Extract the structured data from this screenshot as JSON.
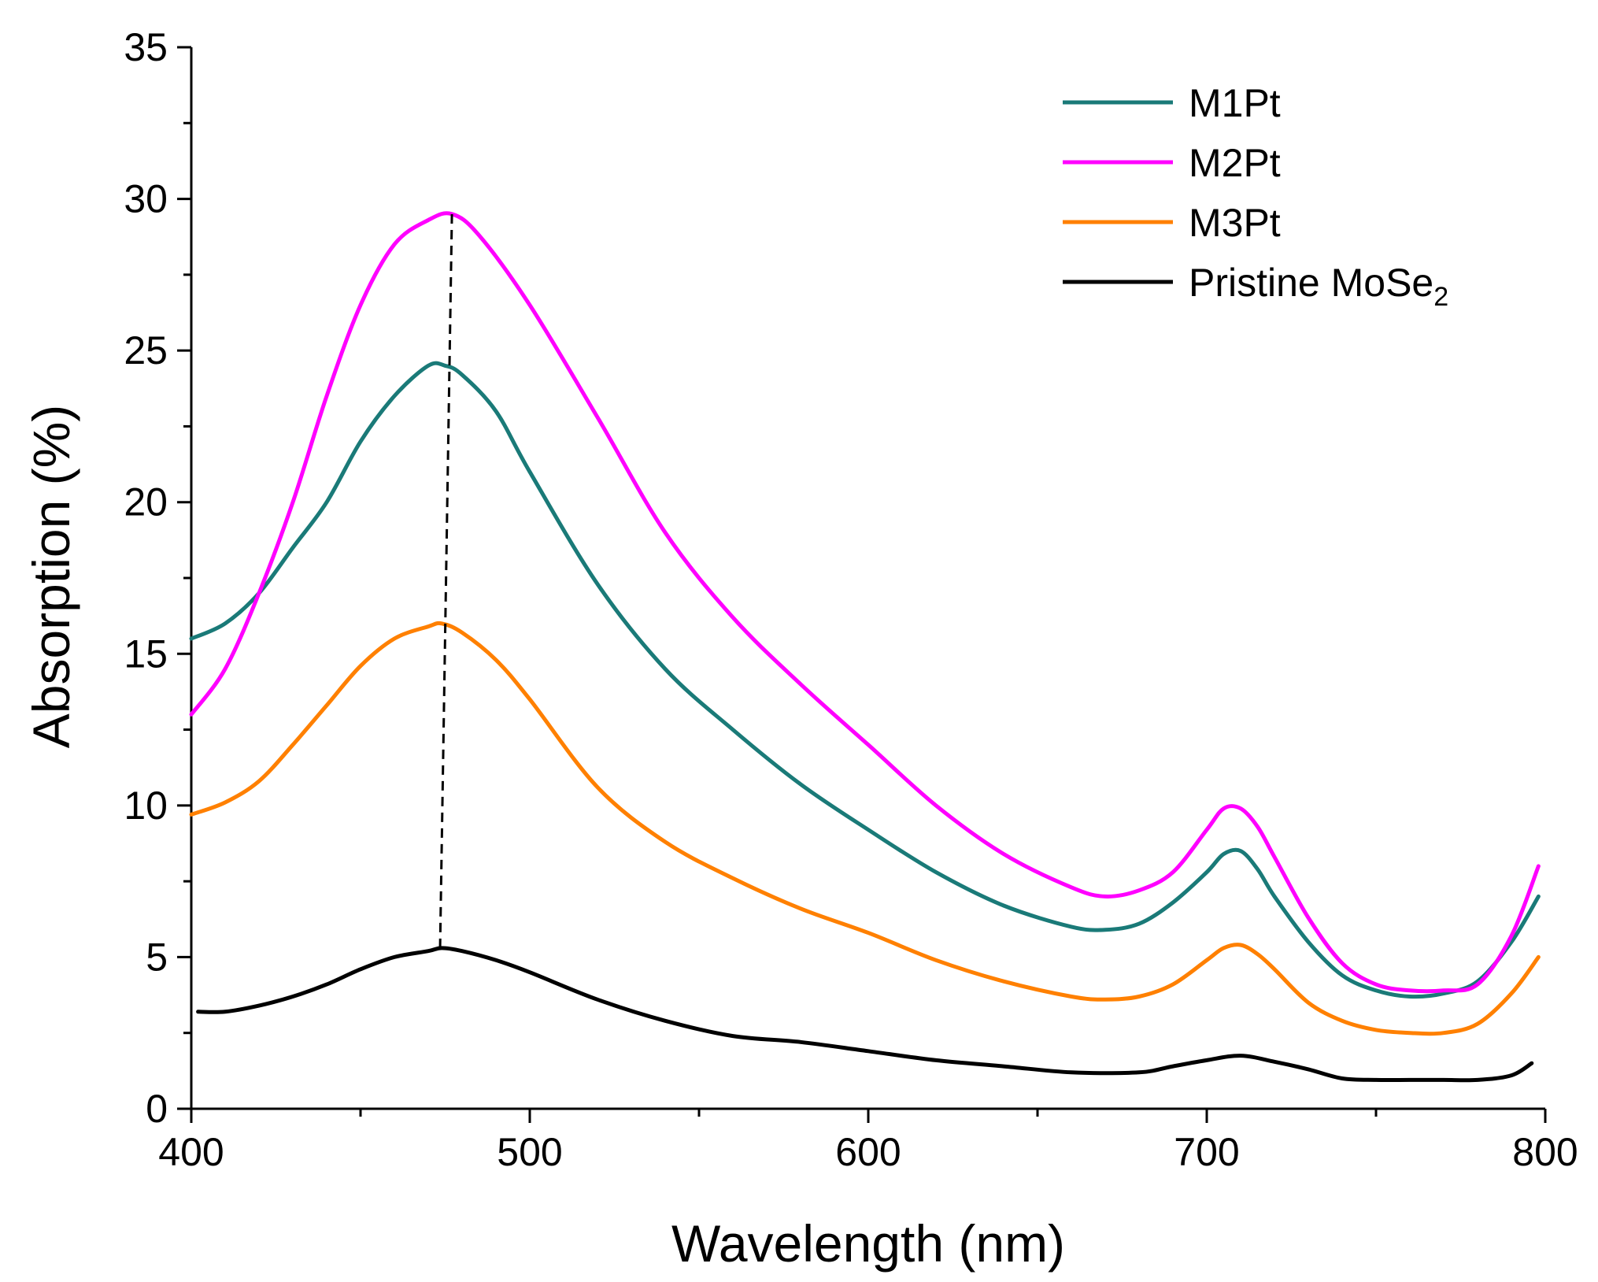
{
  "chart_data": {
    "type": "line",
    "title": "",
    "xlabel": "Wavelength (nm)",
    "ylabel": "Absorption (%)",
    "xlim": [
      400,
      800
    ],
    "ylim": [
      0,
      35
    ],
    "xticks": [
      400,
      500,
      600,
      700,
      800
    ],
    "yticks": [
      0,
      5,
      10,
      15,
      20,
      25,
      30,
      35
    ],
    "legend_position": "top-right",
    "series": [
      {
        "name": "M1Pt",
        "label": "M1Pt",
        "color": "#1a7a78",
        "x": [
          400,
          410,
          420,
          430,
          440,
          450,
          460,
          470,
          475,
          480,
          490,
          500,
          520,
          540,
          560,
          580,
          600,
          620,
          640,
          660,
          670,
          680,
          690,
          700,
          705,
          710,
          715,
          720,
          730,
          740,
          750,
          760,
          770,
          780,
          790,
          798
        ],
        "y": [
          15.5,
          16.0,
          17.0,
          18.5,
          20.0,
          22.0,
          23.5,
          24.5,
          24.5,
          24.2,
          23.0,
          21.0,
          17.3,
          14.5,
          12.5,
          10.7,
          9.2,
          7.8,
          6.7,
          6.0,
          5.9,
          6.1,
          6.8,
          7.8,
          8.4,
          8.5,
          7.9,
          7.0,
          5.5,
          4.4,
          3.9,
          3.7,
          3.8,
          4.2,
          5.5,
          7.0
        ]
      },
      {
        "name": "M2Pt",
        "label": "M2Pt",
        "color": "#ff00ff",
        "x": [
          400,
          410,
          420,
          430,
          440,
          450,
          460,
          470,
          477,
          485,
          500,
          520,
          540,
          560,
          580,
          600,
          620,
          640,
          660,
          670,
          680,
          690,
          700,
          705,
          710,
          715,
          720,
          730,
          740,
          750,
          760,
          770,
          780,
          790,
          798
        ],
        "y": [
          13.0,
          14.5,
          17.0,
          20.0,
          23.5,
          26.5,
          28.5,
          29.3,
          29.5,
          28.8,
          26.5,
          22.8,
          19.0,
          16.2,
          14.0,
          12.0,
          10.0,
          8.4,
          7.3,
          7.0,
          7.2,
          7.8,
          9.2,
          9.9,
          9.9,
          9.3,
          8.3,
          6.3,
          4.8,
          4.1,
          3.9,
          3.9,
          4.1,
          5.7,
          8.0
        ]
      },
      {
        "name": "M3Pt",
        "label": "M3Pt",
        "color": "#ff8000",
        "x": [
          400,
          410,
          420,
          430,
          440,
          450,
          460,
          470,
          474,
          480,
          490,
          500,
          520,
          540,
          560,
          580,
          600,
          620,
          640,
          660,
          670,
          680,
          690,
          700,
          705,
          710,
          715,
          720,
          730,
          740,
          750,
          760,
          770,
          780,
          790,
          798
        ],
        "y": [
          9.7,
          10.1,
          10.8,
          12.0,
          13.3,
          14.6,
          15.5,
          15.9,
          16.0,
          15.7,
          14.8,
          13.5,
          10.6,
          8.8,
          7.6,
          6.6,
          5.8,
          4.9,
          4.2,
          3.7,
          3.6,
          3.7,
          4.1,
          4.9,
          5.3,
          5.4,
          5.1,
          4.6,
          3.5,
          2.9,
          2.6,
          2.5,
          2.5,
          2.8,
          3.8,
          5.0
        ]
      },
      {
        "name": "Pristine MoSe2",
        "label": "Pristine MoSe",
        "subscript": "2",
        "color": "#000000",
        "x": [
          402,
          410,
          420,
          430,
          440,
          450,
          460,
          470,
          474,
          480,
          490,
          500,
          520,
          540,
          560,
          580,
          600,
          620,
          640,
          660,
          680,
          690,
          700,
          710,
          720,
          730,
          740,
          750,
          760,
          770,
          780,
          790,
          796
        ],
        "y": [
          3.2,
          3.2,
          3.4,
          3.7,
          4.1,
          4.6,
          5.0,
          5.2,
          5.3,
          5.2,
          4.9,
          4.5,
          3.6,
          2.9,
          2.4,
          2.2,
          1.9,
          1.6,
          1.4,
          1.2,
          1.2,
          1.4,
          1.6,
          1.75,
          1.55,
          1.3,
          1.0,
          0.95,
          0.95,
          0.95,
          0.95,
          1.1,
          1.5
        ]
      }
    ],
    "annotations": [
      {
        "type": "dashed-line",
        "description": "peak shift guide",
        "points": [
          [
            473.5,
            5.3
          ],
          [
            477,
            29.5
          ]
        ],
        "color": "#000000"
      }
    ]
  }
}
